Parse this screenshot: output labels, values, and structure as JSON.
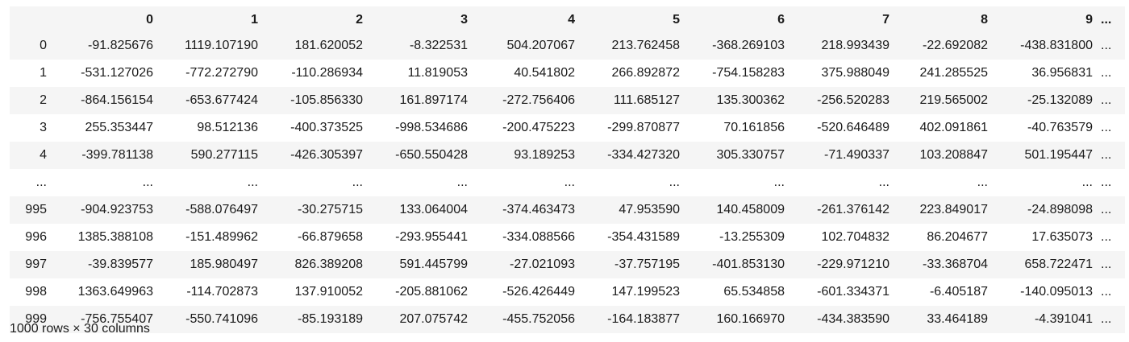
{
  "columns": [
    "0",
    "1",
    "2",
    "3",
    "4",
    "5",
    "6",
    "7",
    "8",
    "9",
    "..."
  ],
  "rows": [
    {
      "index": "0",
      "cells": [
        "-91.825676",
        "1119.107190",
        "181.620052",
        "-8.322531",
        "504.207067",
        "213.762458",
        "-368.269103",
        "218.993439",
        "-22.692082",
        "-438.831800",
        "..."
      ]
    },
    {
      "index": "1",
      "cells": [
        "-531.127026",
        "-772.272790",
        "-110.286934",
        "11.819053",
        "40.541802",
        "266.892872",
        "-754.158283",
        "375.988049",
        "241.285525",
        "36.956831",
        "..."
      ]
    },
    {
      "index": "2",
      "cells": [
        "-864.156154",
        "-653.677424",
        "-105.856330",
        "161.897174",
        "-272.756406",
        "111.685127",
        "135.300362",
        "-256.520283",
        "219.565002",
        "-25.132089",
        "..."
      ]
    },
    {
      "index": "3",
      "cells": [
        "255.353447",
        "98.512136",
        "-400.373525",
        "-998.534686",
        "-200.475223",
        "-299.870877",
        "70.161856",
        "-520.646489",
        "402.091861",
        "-40.763579",
        "..."
      ]
    },
    {
      "index": "4",
      "cells": [
        "-399.781138",
        "590.277115",
        "-426.305397",
        "-650.550428",
        "93.189253",
        "-334.427320",
        "305.330757",
        "-71.490337",
        "103.208847",
        "501.195447",
        "..."
      ]
    },
    {
      "index": "...",
      "cells": [
        "...",
        "...",
        "...",
        "...",
        "...",
        "...",
        "...",
        "...",
        "...",
        "...",
        "..."
      ]
    },
    {
      "index": "995",
      "cells": [
        "-904.923753",
        "-588.076497",
        "-30.275715",
        "133.064004",
        "-374.463473",
        "47.953590",
        "140.458009",
        "-261.376142",
        "223.849017",
        "-24.898098",
        "..."
      ]
    },
    {
      "index": "996",
      "cells": [
        "1385.388108",
        "-151.489962",
        "-66.879658",
        "-293.955441",
        "-334.088566",
        "-354.431589",
        "-13.255309",
        "102.704832",
        "86.204677",
        "17.635073",
        "..."
      ]
    },
    {
      "index": "997",
      "cells": [
        "-39.839577",
        "185.980497",
        "826.389208",
        "591.445799",
        "-27.021093",
        "-37.757195",
        "-401.853130",
        "-229.971210",
        "-33.368704",
        "658.722471",
        "..."
      ]
    },
    {
      "index": "998",
      "cells": [
        "1363.649963",
        "-114.702873",
        "137.910052",
        "-205.881062",
        "-526.426449",
        "147.199523",
        "65.534858",
        "-601.334371",
        "-6.405187",
        "-140.095013",
        "..."
      ]
    },
    {
      "index": "999",
      "cells": [
        "-756.755407",
        "-550.741096",
        "-85.193189",
        "207.075742",
        "-455.752056",
        "-164.183877",
        "160.166970",
        "-434.383590",
        "33.464189",
        "-4.391041",
        "..."
      ]
    }
  ],
  "shape_text": "1000 rows × 30 columns"
}
